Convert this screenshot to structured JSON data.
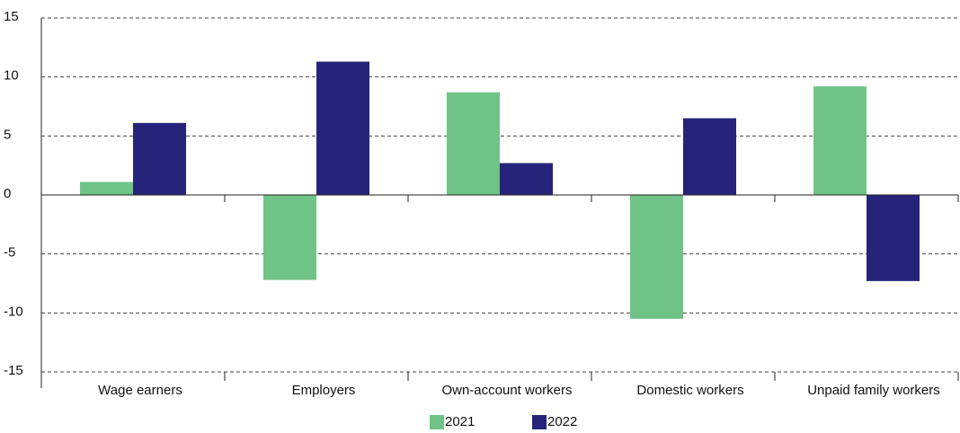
{
  "chart_data": {
    "type": "bar",
    "categories": [
      "Wage earners",
      "Employers",
      "Own-account workers",
      "Domestic workers",
      "Unpaid family workers"
    ],
    "series": [
      {
        "name": "2021",
        "color": "#70c387",
        "values": [
          1.1,
          -7.2,
          8.7,
          -10.5,
          9.2
        ]
      },
      {
        "name": "2022",
        "color": "#26247a",
        "values": [
          6.1,
          11.3,
          2.7,
          6.5,
          -7.3
        ]
      }
    ],
    "ylim": [
      -15,
      15
    ],
    "yticks": [
      -15,
      -10,
      -5,
      0,
      5,
      10,
      15
    ],
    "grid": true,
    "legend": "bottom"
  }
}
